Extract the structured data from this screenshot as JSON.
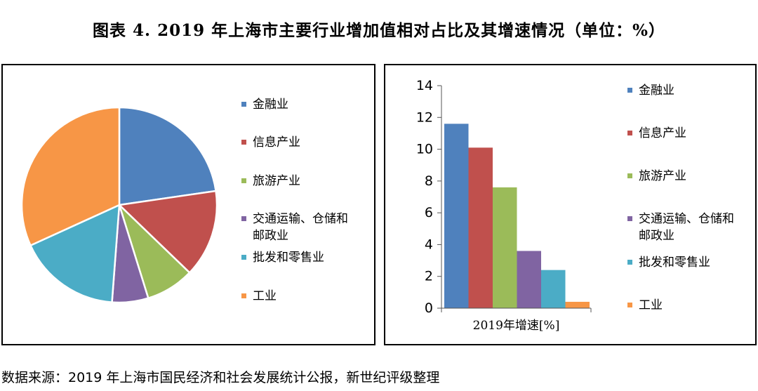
{
  "title": "图表 4. 2019 年上海市主要行业增加值相对占比及其增速情况（单位：%）",
  "footer": "数据来源：2019 年上海市国民经济和社会发展统计公报，新世纪评级整理",
  "colors": {
    "finance": "#4f81bd",
    "info": "#c0504d",
    "tourism": "#9bbb59",
    "transport": "#8064a2",
    "retail": "#4bacc6",
    "industry": "#f79646"
  },
  "chart_data": [
    {
      "type": "pie",
      "categories": [
        "金融业",
        "信息产业",
        "旅游产业",
        "交通运输、仓储和邮政业",
        "批发和零售业",
        "工业"
      ],
      "values": [
        22.7,
        14.5,
        8.0,
        6.0,
        17.0,
        31.8
      ],
      "legend": "right"
    },
    {
      "type": "bar",
      "categories": [
        "金融业",
        "信息产业",
        "旅游产业",
        "交通运输、仓储和邮政业",
        "批发和零售业",
        "工业"
      ],
      "values": [
        11.6,
        10.1,
        7.6,
        3.6,
        2.4,
        0.4
      ],
      "xlabel": "2019年增速[%]",
      "ylim": [
        0,
        14
      ],
      "yticks": [
        0,
        2,
        4,
        6,
        8,
        10,
        12,
        14
      ],
      "legend": "right"
    }
  ]
}
